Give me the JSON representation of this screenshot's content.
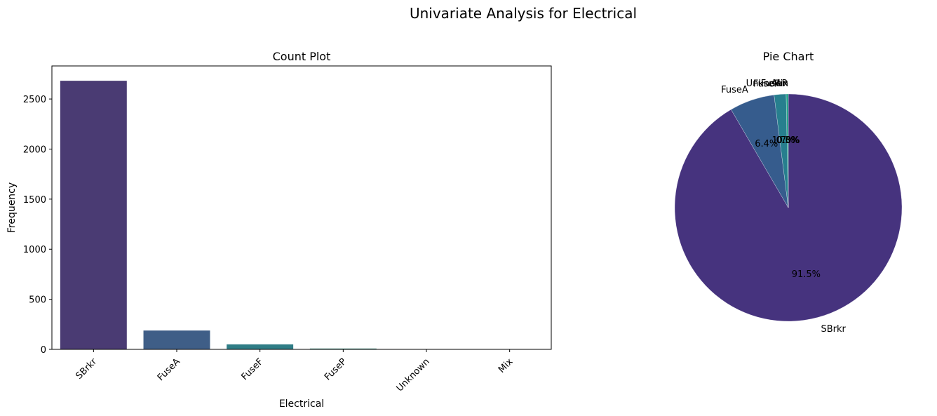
{
  "figure": {
    "suptitle": "Univariate Analysis for Electrical"
  },
  "chart_data": [
    {
      "type": "bar",
      "title": "Count Plot",
      "xlabel": "Electrical",
      "ylabel": "Frequency",
      "categories": [
        "SBrkr",
        "FuseA",
        "FuseF",
        "FuseP",
        "Unknown",
        "Mix"
      ],
      "values": [
        2682,
        188,
        50,
        8,
        1,
        1
      ],
      "ylim": [
        0,
        2830
      ],
      "yticks": [
        0,
        500,
        1000,
        1500,
        2000,
        2500
      ],
      "colors": [
        "#4a3b73",
        "#3f5e87",
        "#2f7d86",
        "#277f6c",
        "#33a570",
        "#6cc95a"
      ],
      "xtick_rotation": 45,
      "grid": false
    },
    {
      "type": "pie",
      "title": "Pie Chart",
      "labels": [
        "SBrkr",
        "FuseA",
        "FuseF",
        "FuseP",
        "Unknown",
        "Mix"
      ],
      "values": [
        91.5,
        6.4,
        1.7,
        0.3,
        0.0,
        0.0
      ],
      "pct_labels": [
        "91.5%",
        "6.4%",
        "1.7%",
        "0.3%",
        "0.0%",
        "0.0%"
      ],
      "colors": [
        "#46337e",
        "#365c8d",
        "#277f8e",
        "#1fa187",
        "#4ac16d",
        "#a0da39"
      ],
      "startangle": 90,
      "counterclock": false
    }
  ]
}
